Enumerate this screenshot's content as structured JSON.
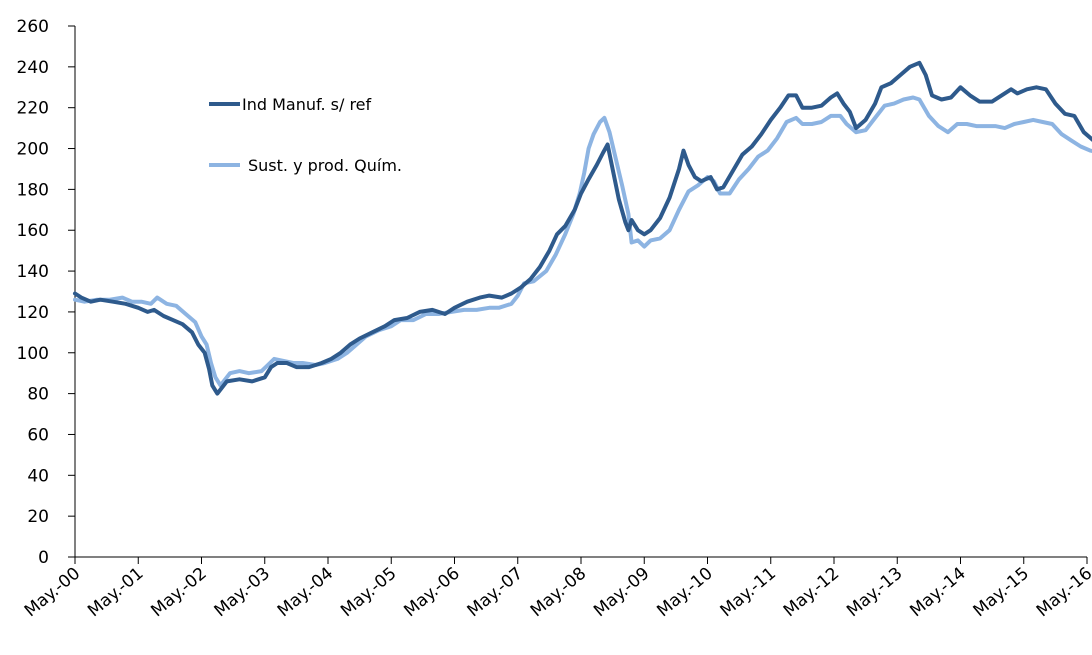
{
  "chart_data": {
    "type": "line",
    "title": "",
    "xlabel": "",
    "ylabel": "",
    "ylim": [
      0,
      260
    ],
    "yticks": [
      0,
      20,
      40,
      60,
      80,
      100,
      120,
      140,
      160,
      180,
      200,
      220,
      240,
      260
    ],
    "x_tick_labels": [
      "May.-00",
      "May.-01",
      "May.-02",
      "May.-03",
      "May.-04",
      "May.-05",
      "May.-06",
      "May.-07",
      "May.-08",
      "May.-09",
      "May.-10",
      "May.-11",
      "May.-12",
      "May.-13",
      "May.-14",
      "May.-15",
      "May.-16"
    ],
    "x_start": "May.-00",
    "x_end": "May.-16",
    "grid": false,
    "legend_position": "upper-left-inside",
    "series": [
      {
        "name": "Ind Manuf. s/ ref",
        "color": "#2e5a8c",
        "points": [
          [
            0.0,
            129
          ],
          [
            0.1,
            127
          ],
          [
            0.25,
            125
          ],
          [
            0.4,
            126
          ],
          [
            0.6,
            125
          ],
          [
            0.8,
            124
          ],
          [
            1.0,
            122
          ],
          [
            1.15,
            120
          ],
          [
            1.25,
            121
          ],
          [
            1.4,
            118
          ],
          [
            1.55,
            116
          ],
          [
            1.7,
            114
          ],
          [
            1.85,
            110
          ],
          [
            1.95,
            104
          ],
          [
            2.05,
            100
          ],
          [
            2.12,
            92
          ],
          [
            2.17,
            84
          ],
          [
            2.25,
            80
          ],
          [
            2.4,
            86
          ],
          [
            2.6,
            87
          ],
          [
            2.8,
            86
          ],
          [
            3.0,
            88
          ],
          [
            3.1,
            93
          ],
          [
            3.2,
            95
          ],
          [
            3.35,
            95
          ],
          [
            3.5,
            93
          ],
          [
            3.7,
            93
          ],
          [
            3.9,
            95
          ],
          [
            4.05,
            97
          ],
          [
            4.2,
            100
          ],
          [
            4.35,
            104
          ],
          [
            4.5,
            107
          ],
          [
            4.7,
            110
          ],
          [
            4.9,
            113
          ],
          [
            5.05,
            116
          ],
          [
            5.25,
            117
          ],
          [
            5.45,
            120
          ],
          [
            5.65,
            121
          ],
          [
            5.85,
            119
          ],
          [
            6.0,
            122
          ],
          [
            6.2,
            125
          ],
          [
            6.4,
            127
          ],
          [
            6.55,
            128
          ],
          [
            6.75,
            127
          ],
          [
            6.9,
            129
          ],
          [
            7.05,
            132
          ],
          [
            7.2,
            136
          ],
          [
            7.35,
            142
          ],
          [
            7.5,
            150
          ],
          [
            7.62,
            158
          ],
          [
            7.75,
            162
          ],
          [
            7.9,
            170
          ],
          [
            8.0,
            178
          ],
          [
            8.12,
            185
          ],
          [
            8.25,
            192
          ],
          [
            8.35,
            198
          ],
          [
            8.42,
            202
          ],
          [
            8.5,
            190
          ],
          [
            8.6,
            175
          ],
          [
            8.7,
            164
          ],
          [
            8.75,
            160
          ],
          [
            8.8,
            165
          ],
          [
            8.9,
            160
          ],
          [
            9.0,
            158
          ],
          [
            9.1,
            160
          ],
          [
            9.25,
            166
          ],
          [
            9.4,
            176
          ],
          [
            9.55,
            190
          ],
          [
            9.62,
            199
          ],
          [
            9.7,
            192
          ],
          [
            9.8,
            186
          ],
          [
            9.9,
            184
          ],
          [
            10.05,
            186
          ],
          [
            10.15,
            180
          ],
          [
            10.25,
            181
          ],
          [
            10.4,
            189
          ],
          [
            10.55,
            197
          ],
          [
            10.7,
            201
          ],
          [
            10.85,
            207
          ],
          [
            11.0,
            214
          ],
          [
            11.15,
            220
          ],
          [
            11.28,
            226
          ],
          [
            11.4,
            226
          ],
          [
            11.5,
            220
          ],
          [
            11.65,
            220
          ],
          [
            11.8,
            221
          ],
          [
            11.95,
            225
          ],
          [
            12.05,
            227
          ],
          [
            12.15,
            222
          ],
          [
            12.25,
            218
          ],
          [
            12.35,
            210
          ],
          [
            12.5,
            214
          ],
          [
            12.65,
            222
          ],
          [
            12.75,
            230
          ],
          [
            12.9,
            232
          ],
          [
            13.05,
            236
          ],
          [
            13.2,
            240
          ],
          [
            13.35,
            242
          ],
          [
            13.45,
            236
          ],
          [
            13.55,
            226
          ],
          [
            13.7,
            224
          ],
          [
            13.85,
            225
          ],
          [
            14.0,
            230
          ],
          [
            14.15,
            226
          ],
          [
            14.3,
            223
          ],
          [
            14.5,
            223
          ],
          [
            14.65,
            226
          ],
          [
            14.8,
            229
          ],
          [
            14.9,
            227
          ],
          [
            15.05,
            229
          ],
          [
            15.2,
            230
          ],
          [
            15.35,
            229
          ],
          [
            15.5,
            222
          ],
          [
            15.65,
            217
          ],
          [
            15.8,
            216
          ],
          [
            15.95,
            208
          ],
          [
            16.1,
            204
          ],
          [
            16.25,
            204
          ],
          [
            16.4,
            199
          ],
          [
            16.55,
            196
          ],
          [
            16.7,
            194
          ],
          [
            16.8,
            196
          ],
          [
            16.9,
            198
          ]
        ]
      },
      {
        "name": "Sust. y prod. Quím.",
        "color": "#8db4e2",
        "points": [
          [
            0.0,
            126
          ],
          [
            0.15,
            125
          ],
          [
            0.35,
            126
          ],
          [
            0.55,
            126
          ],
          [
            0.75,
            127
          ],
          [
            0.9,
            125
          ],
          [
            1.05,
            125
          ],
          [
            1.2,
            124
          ],
          [
            1.3,
            127
          ],
          [
            1.45,
            124
          ],
          [
            1.6,
            123
          ],
          [
            1.75,
            119
          ],
          [
            1.9,
            115
          ],
          [
            2.0,
            108
          ],
          [
            2.08,
            104
          ],
          [
            2.15,
            95
          ],
          [
            2.22,
            88
          ],
          [
            2.3,
            84
          ],
          [
            2.45,
            90
          ],
          [
            2.6,
            91
          ],
          [
            2.75,
            90
          ],
          [
            2.95,
            91
          ],
          [
            3.05,
            94
          ],
          [
            3.15,
            97
          ],
          [
            3.3,
            96
          ],
          [
            3.45,
            95
          ],
          [
            3.6,
            95
          ],
          [
            3.8,
            94
          ],
          [
            3.95,
            95
          ],
          [
            4.15,
            97
          ],
          [
            4.3,
            100
          ],
          [
            4.45,
            104
          ],
          [
            4.6,
            108
          ],
          [
            4.8,
            111
          ],
          [
            5.0,
            113
          ],
          [
            5.15,
            116
          ],
          [
            5.35,
            116
          ],
          [
            5.55,
            119
          ],
          [
            5.75,
            119
          ],
          [
            5.95,
            120
          ],
          [
            6.15,
            121
          ],
          [
            6.35,
            121
          ],
          [
            6.55,
            122
          ],
          [
            6.7,
            122
          ],
          [
            6.9,
            124
          ],
          [
            7.0,
            128
          ],
          [
            7.1,
            134
          ],
          [
            7.25,
            135
          ],
          [
            7.45,
            140
          ],
          [
            7.6,
            148
          ],
          [
            7.75,
            158
          ],
          [
            7.88,
            168
          ],
          [
            7.98,
            178
          ],
          [
            8.05,
            188
          ],
          [
            8.12,
            200
          ],
          [
            8.2,
            207
          ],
          [
            8.3,
            213
          ],
          [
            8.37,
            215
          ],
          [
            8.45,
            208
          ],
          [
            8.55,
            195
          ],
          [
            8.65,
            182
          ],
          [
            8.75,
            168
          ],
          [
            8.8,
            154
          ],
          [
            8.9,
            155
          ],
          [
            9.0,
            152
          ],
          [
            9.1,
            155
          ],
          [
            9.25,
            156
          ],
          [
            9.4,
            160
          ],
          [
            9.55,
            170
          ],
          [
            9.7,
            179
          ],
          [
            9.85,
            182
          ],
          [
            10.0,
            186
          ],
          [
            10.1,
            184
          ],
          [
            10.2,
            178
          ],
          [
            10.35,
            178
          ],
          [
            10.5,
            185
          ],
          [
            10.65,
            190
          ],
          [
            10.8,
            196
          ],
          [
            10.95,
            199
          ],
          [
            11.1,
            205
          ],
          [
            11.25,
            213
          ],
          [
            11.4,
            215
          ],
          [
            11.5,
            212
          ],
          [
            11.65,
            212
          ],
          [
            11.8,
            213
          ],
          [
            11.95,
            216
          ],
          [
            12.1,
            216
          ],
          [
            12.2,
            212
          ],
          [
            12.35,
            208
          ],
          [
            12.5,
            209
          ],
          [
            12.65,
            215
          ],
          [
            12.8,
            221
          ],
          [
            12.95,
            222
          ],
          [
            13.1,
            224
          ],
          [
            13.25,
            225
          ],
          [
            13.35,
            224
          ],
          [
            13.5,
            216
          ],
          [
            13.65,
            211
          ],
          [
            13.8,
            208
          ],
          [
            13.95,
            212
          ],
          [
            14.1,
            212
          ],
          [
            14.25,
            211
          ],
          [
            14.4,
            211
          ],
          [
            14.55,
            211
          ],
          [
            14.7,
            210
          ],
          [
            14.85,
            212
          ],
          [
            15.0,
            213
          ],
          [
            15.15,
            214
          ],
          [
            15.3,
            213
          ],
          [
            15.45,
            212
          ],
          [
            15.6,
            207
          ],
          [
            15.75,
            204
          ],
          [
            15.9,
            201
          ],
          [
            16.05,
            199
          ],
          [
            16.2,
            198
          ],
          [
            16.35,
            193
          ],
          [
            16.5,
            190
          ],
          [
            16.65,
            188
          ],
          [
            16.8,
            191
          ],
          [
            16.92,
            194
          ]
        ]
      }
    ]
  }
}
